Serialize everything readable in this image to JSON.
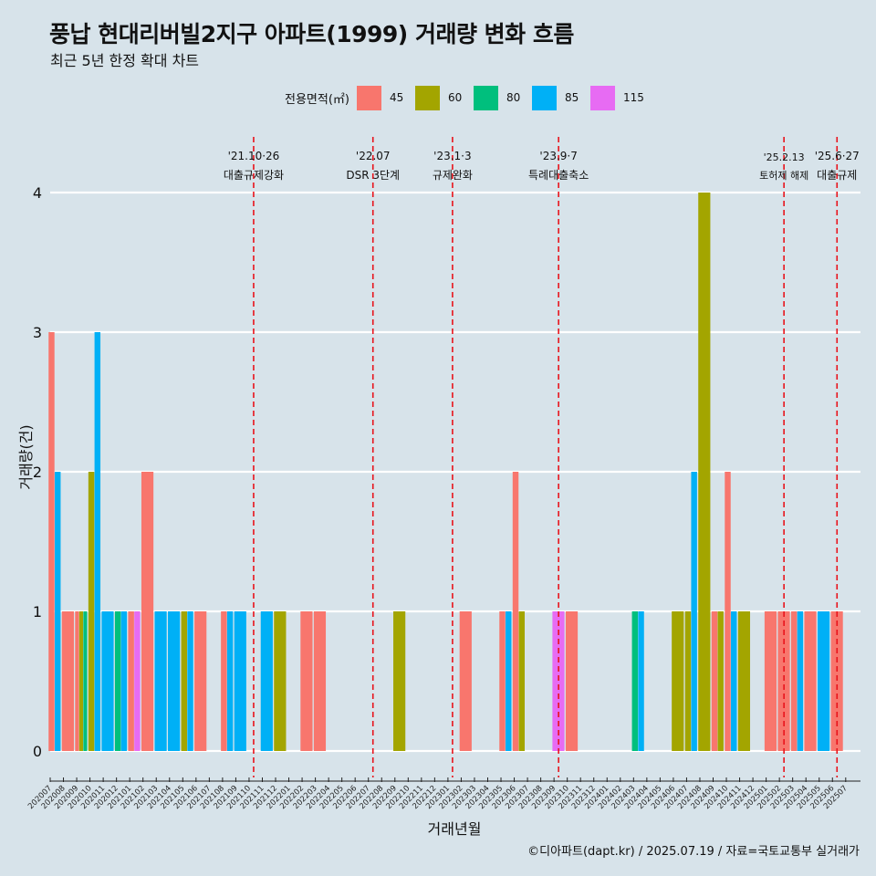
{
  "title": "풍납 현대리버빌2지구 아파트(1999) 거래량 변화 흐름",
  "subtitle": "최근 5년 한정 확대 차트",
  "caption": "©디아파트(dapt.kr) / 2025.07.19 / 자료=국토교통부 실거래가",
  "legend": {
    "title": "전용면적(㎡)",
    "items": [
      {
        "label": "45",
        "color": "#f8766d"
      },
      {
        "label": "60",
        "color": "#a3a500"
      },
      {
        "label": "80",
        "color": "#00bf7d"
      },
      {
        "label": "85",
        "color": "#00b0f6"
      },
      {
        "label": "115",
        "color": "#e76bf3"
      }
    ]
  },
  "chart_data": {
    "type": "bar",
    "title": "풍납 현대리버빌2지구 아파트(1999) 거래량 변화 흐름",
    "subtitle": "최근 5년 한정 확대 차트",
    "xlabel": "거래년월",
    "ylabel": "거래량(건)",
    "ylim": [
      0,
      4
    ],
    "yticks": [
      0,
      1,
      2,
      3,
      4
    ],
    "grid": true,
    "legend_position": "top",
    "categories": [
      "202007",
      "202008",
      "202009",
      "202010",
      "202011",
      "202012",
      "202101",
      "202102",
      "202103",
      "202104",
      "202105",
      "202106",
      "202107",
      "202108",
      "202109",
      "202110",
      "202111",
      "202112",
      "202201",
      "202202",
      "202203",
      "202204",
      "202205",
      "202206",
      "202207",
      "202208",
      "202209",
      "202210",
      "202211",
      "202212",
      "202301",
      "202302",
      "202303",
      "202304",
      "202305",
      "202306",
      "202307",
      "202308",
      "202309",
      "202310",
      "202311",
      "202312",
      "202401",
      "202402",
      "202403",
      "202404",
      "202405",
      "202406",
      "202407",
      "202408",
      "202409",
      "202410",
      "202411",
      "202412",
      "202501",
      "202502",
      "202503",
      "202504",
      "202505",
      "202506",
      "202507"
    ],
    "bars": [
      {
        "x": "202007",
        "series": "45",
        "y": 3
      },
      {
        "x": "202007",
        "series": "85",
        "y": 2
      },
      {
        "x": "202008",
        "series": "45",
        "y": 1
      },
      {
        "x": "202009",
        "series": "45",
        "y": 1
      },
      {
        "x": "202009",
        "series": "60",
        "y": 1
      },
      {
        "x": "202009",
        "series": "80",
        "y": 1
      },
      {
        "x": "202010",
        "series": "60",
        "y": 2
      },
      {
        "x": "202010",
        "series": "85",
        "y": 3
      },
      {
        "x": "202011",
        "series": "85",
        "y": 1
      },
      {
        "x": "202012",
        "series": "80",
        "y": 1
      },
      {
        "x": "202012",
        "series": "85",
        "y": 1
      },
      {
        "x": "202101",
        "series": "45",
        "y": 1
      },
      {
        "x": "202101",
        "series": "115",
        "y": 1
      },
      {
        "x": "202102",
        "series": "45",
        "y": 2
      },
      {
        "x": "202103",
        "series": "85",
        "y": 1
      },
      {
        "x": "202104",
        "series": "85",
        "y": 1
      },
      {
        "x": "202105",
        "series": "60",
        "y": 1
      },
      {
        "x": "202105",
        "series": "85",
        "y": 1
      },
      {
        "x": "202106",
        "series": "45",
        "y": 1
      },
      {
        "x": "202108",
        "series": "45",
        "y": 1
      },
      {
        "x": "202108",
        "series": "85",
        "y": 1
      },
      {
        "x": "202109",
        "series": "85",
        "y": 1
      },
      {
        "x": "202111",
        "series": "85",
        "y": 1
      },
      {
        "x": "202112",
        "series": "60",
        "y": 1
      },
      {
        "x": "202202",
        "series": "45",
        "y": 1
      },
      {
        "x": "202203",
        "series": "45",
        "y": 1
      },
      {
        "x": "202209",
        "series": "60",
        "y": 1
      },
      {
        "x": "202302",
        "series": "45",
        "y": 1
      },
      {
        "x": "202305",
        "series": "45",
        "y": 1
      },
      {
        "x": "202305",
        "series": "85",
        "y": 1
      },
      {
        "x": "202306",
        "series": "45",
        "y": 2
      },
      {
        "x": "202306",
        "series": "60",
        "y": 1
      },
      {
        "x": "202309",
        "series": "115",
        "y": 1
      },
      {
        "x": "202310",
        "series": "45",
        "y": 1
      },
      {
        "x": "202403",
        "series": "80",
        "y": 1
      },
      {
        "x": "202403",
        "series": "85",
        "y": 1
      },
      {
        "x": "202406",
        "series": "60",
        "y": 1
      },
      {
        "x": "202407",
        "series": "60",
        "y": 1
      },
      {
        "x": "202407",
        "series": "85",
        "y": 2
      },
      {
        "x": "202408",
        "series": "60",
        "y": 4
      },
      {
        "x": "202409",
        "series": "45",
        "y": 1
      },
      {
        "x": "202409",
        "series": "60",
        "y": 1
      },
      {
        "x": "202410",
        "series": "45",
        "y": 2
      },
      {
        "x": "202410",
        "series": "85",
        "y": 1
      },
      {
        "x": "202411",
        "series": "60",
        "y": 1
      },
      {
        "x": "202501",
        "series": "45",
        "y": 1
      },
      {
        "x": "202502",
        "series": "45",
        "y": 1
      },
      {
        "x": "202503",
        "series": "45",
        "y": 1
      },
      {
        "x": "202503",
        "series": "85",
        "y": 1
      },
      {
        "x": "202504",
        "series": "45",
        "y": 1
      },
      {
        "x": "202505",
        "series": "85",
        "y": 1
      },
      {
        "x": "202506",
        "series": "45",
        "y": 1
      }
    ],
    "annotations": [
      {
        "x": "202110",
        "date": "'21.10·26",
        "label": "대출규제강화"
      },
      {
        "x": "202207",
        "date": "'22.07",
        "label": "DSR 3단계"
      },
      {
        "x": "202301",
        "date": "'23.1·3",
        "label": "규제완화"
      },
      {
        "x": "202309",
        "date": "'23.9·7",
        "label": "특례대출축소"
      },
      {
        "x": "202502",
        "date": "'25.2.13",
        "label": "토허제 해제"
      },
      {
        "x": "202506",
        "date": "'25.6·27",
        "label": "대출규제"
      }
    ]
  }
}
